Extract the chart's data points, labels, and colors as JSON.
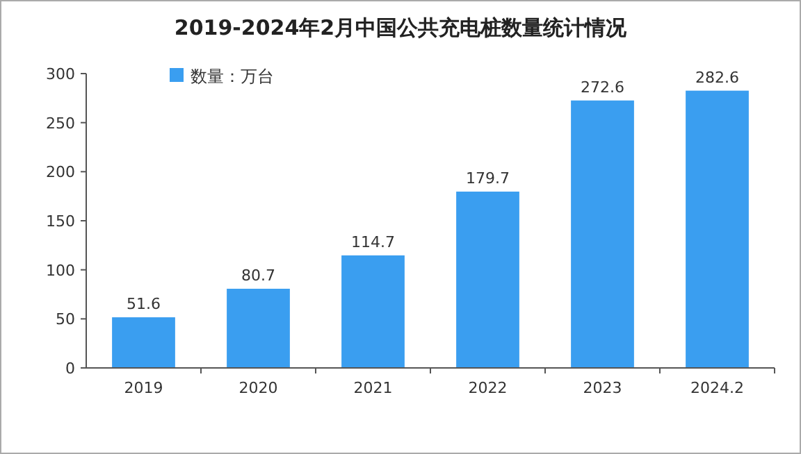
{
  "chart_data": {
    "type": "bar",
    "title": "2019-2024年2月中国公共充电桩数量统计情况",
    "categories": [
      "2019",
      "2020",
      "2021",
      "2022",
      "2023",
      "2024.2"
    ],
    "series": [
      {
        "name": "数量：万台",
        "color": "#3a9ef0",
        "values": [
          51.6,
          80.7,
          114.7,
          179.7,
          272.6,
          282.6
        ]
      }
    ],
    "ylim": [
      0,
      300
    ],
    "yticks": [
      0,
      50,
      100,
      150,
      200,
      250,
      300
    ],
    "grid": false,
    "legend": "top left",
    "data_labels": true
  }
}
